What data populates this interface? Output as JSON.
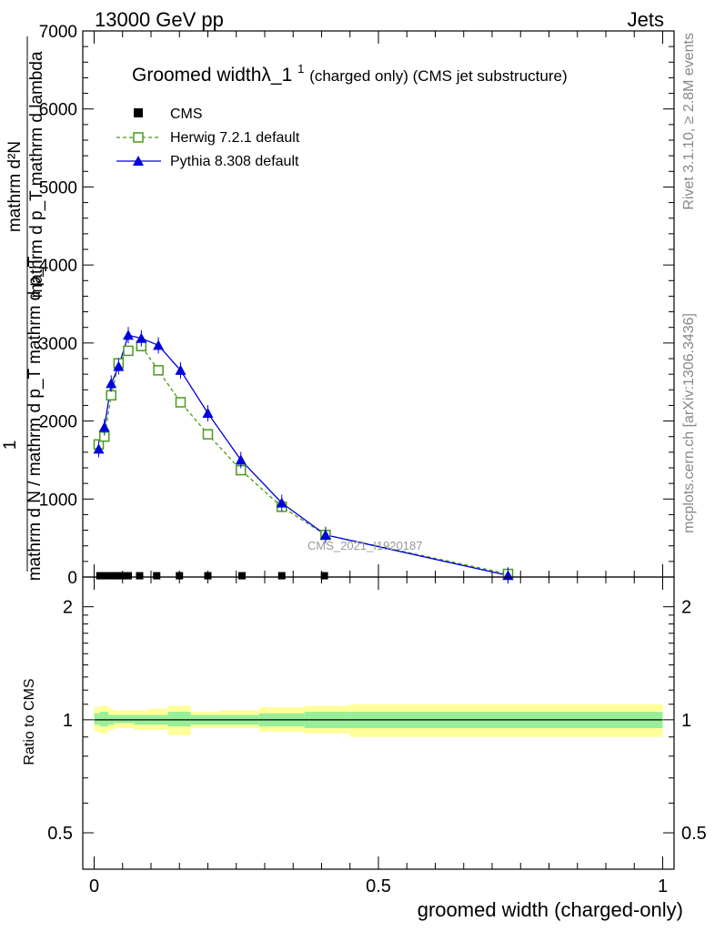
{
  "header": {
    "left": "13000 GeV pp",
    "right": "Jets"
  },
  "side": {
    "rivet": "Rivet 3.1.10, ≥ 2.8M events",
    "mcplots": "mcplots.cern.ch [arXiv:1306.3436]"
  },
  "watermark": "CMS_2021_I1920187",
  "chart_data": [
    {
      "type": "line",
      "title_main": "Groomed widthλ_1",
      "title_sup": "1",
      "title_sub": " (charged only) (CMS jet substructure)",
      "ylabel_top": "mathrm d²N",
      "ylabel_mid": "mathrm d p_T mathrm d lambda",
      "ylabel_bottom": "mathrm d N / mathrm d p_T mathrm d p_T",
      "ylabel_one": "1",
      "xlim": [
        -0.02,
        1.02
      ],
      "ylim": [
        0,
        7000
      ],
      "yticks": [
        0,
        1000,
        2000,
        3000,
        4000,
        5000,
        6000,
        7000
      ],
      "ytick_labels": [
        "0",
        "1000",
        "2000",
        "3000",
        "4000",
        "5000",
        "6000",
        "7000"
      ],
      "legend_position": "top-left",
      "series": [
        {
          "name": "CMS",
          "color": "#000000",
          "marker": "square-filled",
          "x": [
            0.01,
            0.02,
            0.03,
            0.04,
            0.05,
            0.06,
            0.08,
            0.11,
            0.15,
            0.2,
            0.26,
            0.33,
            0.405
          ],
          "y": [
            5,
            5,
            5,
            5,
            5,
            5,
            5,
            5,
            5,
            5,
            5,
            5,
            5
          ]
        },
        {
          "name": "Herwig 7.2.1 default",
          "color": "#4a9a1a",
          "marker": "square-open",
          "dashed": true,
          "x": [
            0.008,
            0.018,
            0.03,
            0.043,
            0.06,
            0.083,
            0.113,
            0.152,
            0.2,
            0.258,
            0.33,
            0.407,
            0.728
          ],
          "y": [
            1700,
            1800,
            2330,
            2740,
            2900,
            2960,
            2650,
            2240,
            1830,
            1370,
            900,
            540,
            40
          ]
        },
        {
          "name": "Pythia 8.308 default",
          "color": "#0000dd",
          "marker": "triangle-filled",
          "dashed": false,
          "x": [
            0.008,
            0.018,
            0.03,
            0.043,
            0.06,
            0.083,
            0.113,
            0.152,
            0.2,
            0.258,
            0.33,
            0.407,
            0.728
          ],
          "y": [
            1640,
            1920,
            2480,
            2700,
            3100,
            3060,
            2970,
            2650,
            2100,
            1500,
            950,
            540,
            20
          ]
        }
      ]
    },
    {
      "type": "area",
      "ylabel": "Ratio to CMS",
      "xlabel": "groomed width (charged-only)",
      "xlim": [
        -0.02,
        1.02
      ],
      "ylim": [
        0.4,
        2.4
      ],
      "log_y": true,
      "yticks": [
        0.5,
        1,
        2
      ],
      "ytick_labels": [
        "0.5",
        "1",
        "2"
      ],
      "xticks": [
        0,
        0.5,
        1
      ],
      "xtick_labels": [
        "0",
        "0.5",
        "1"
      ],
      "band_outer_color": "#ffff99",
      "band_inner_color": "#99ee99",
      "bins": [
        {
          "lo": 0.0,
          "hi": 0.01,
          "outer": [
            0.93,
            1.08
          ],
          "inner": [
            0.97,
            1.04
          ]
        },
        {
          "lo": 0.01,
          "hi": 0.025,
          "outer": [
            0.92,
            1.09
          ],
          "inner": [
            0.96,
            1.05
          ]
        },
        {
          "lo": 0.025,
          "hi": 0.035,
          "outer": [
            0.94,
            1.07
          ],
          "inner": [
            0.97,
            1.03
          ]
        },
        {
          "lo": 0.035,
          "hi": 0.05,
          "outer": [
            0.95,
            1.06
          ],
          "inner": [
            0.98,
            1.03
          ]
        },
        {
          "lo": 0.05,
          "hi": 0.07,
          "outer": [
            0.95,
            1.06
          ],
          "inner": [
            0.98,
            1.03
          ]
        },
        {
          "lo": 0.07,
          "hi": 0.095,
          "outer": [
            0.94,
            1.06
          ],
          "inner": [
            0.97,
            1.03
          ]
        },
        {
          "lo": 0.095,
          "hi": 0.13,
          "outer": [
            0.94,
            1.07
          ],
          "inner": [
            0.97,
            1.03
          ]
        },
        {
          "lo": 0.13,
          "hi": 0.17,
          "outer": [
            0.91,
            1.09
          ],
          "inner": [
            0.96,
            1.05
          ]
        },
        {
          "lo": 0.17,
          "hi": 0.22,
          "outer": [
            0.95,
            1.05
          ],
          "inner": [
            0.97,
            1.03
          ]
        },
        {
          "lo": 0.22,
          "hi": 0.29,
          "outer": [
            0.95,
            1.06
          ],
          "inner": [
            0.97,
            1.03
          ]
        },
        {
          "lo": 0.29,
          "hi": 0.37,
          "outer": [
            0.93,
            1.08
          ],
          "inner": [
            0.96,
            1.04
          ]
        },
        {
          "lo": 0.37,
          "hi": 0.45,
          "outer": [
            0.92,
            1.09
          ],
          "inner": [
            0.95,
            1.05
          ]
        },
        {
          "lo": 0.45,
          "hi": 1.0,
          "outer": [
            0.9,
            1.1
          ],
          "inner": [
            0.95,
            1.05
          ]
        }
      ]
    }
  ]
}
